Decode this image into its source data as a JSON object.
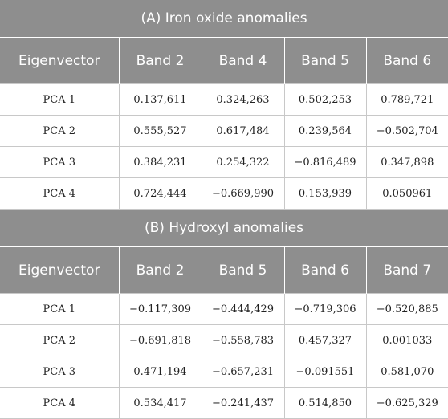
{
  "sections": [
    {
      "title": "(A) Iron oxide anomalies",
      "headers": [
        "Eigenvector",
        "Band 2",
        "Band 4",
        "Band 5",
        "Band 6"
      ],
      "rows": [
        [
          "PCA 1",
          "0.137,611",
          "0.324,263",
          "0.502,253",
          "0.789,721"
        ],
        [
          "PCA 2",
          "0.555,527",
          "0.617,484",
          "0.239,564",
          "−0.502,704"
        ],
        [
          "PCA 3",
          "0.384,231",
          "0.254,322",
          "−0.816,489",
          "0.347,898"
        ],
        [
          "PCA 4",
          "0.724,444",
          "−0.669,990",
          "0.153,939",
          "0.050961"
        ]
      ]
    },
    {
      "title": "(B) Hydroxyl anomalies",
      "headers": [
        "Eigenvector",
        "Band 2",
        "Band 5",
        "Band 6",
        "Band 7"
      ],
      "rows": [
        [
          "PCA 1",
          "−0.117,309",
          "−0.444,429",
          "−0.719,306",
          "−0.520,885"
        ],
        [
          "PCA 2",
          "−0.691,818",
          "−0.558,783",
          "0.457,327",
          "0.001033"
        ],
        [
          "PCA 3",
          "0.471,194",
          "−0.657,231",
          "−0.091551",
          "0.581,070"
        ],
        [
          "PCA 4",
          "0.534,417",
          "−0.241,437",
          "0.514,850",
          "−0.625,329"
        ]
      ]
    }
  ]
}
